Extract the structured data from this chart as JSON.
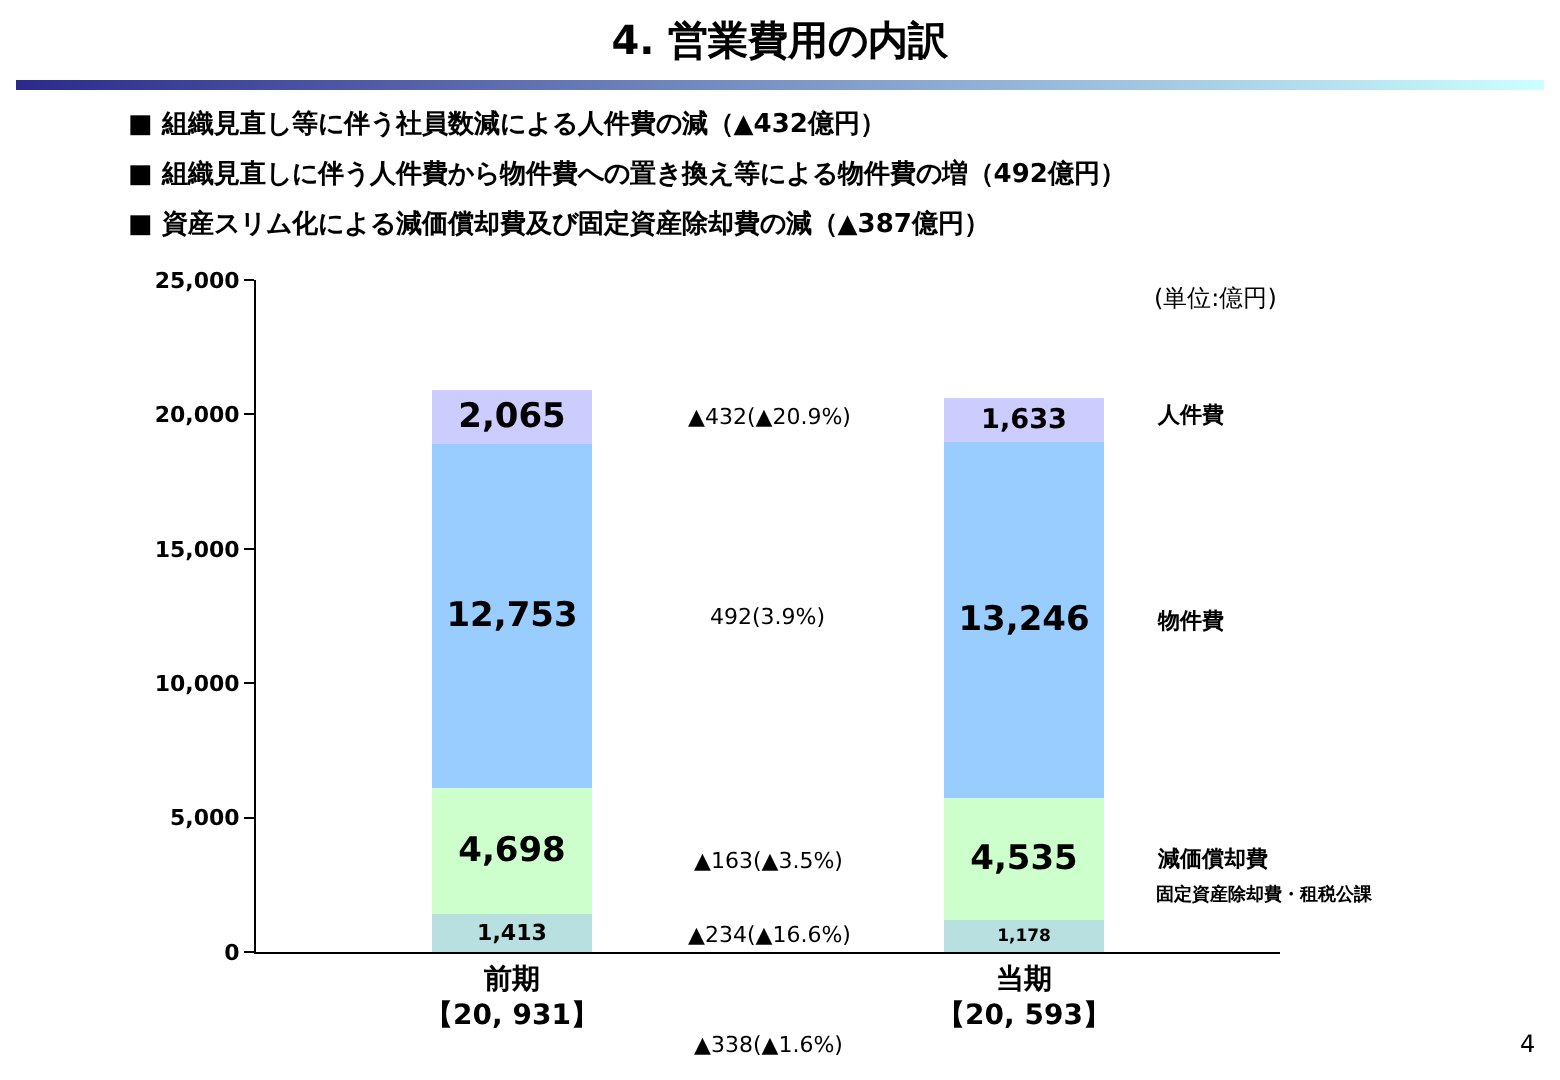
{
  "chart_data": {
    "type": "bar",
    "stacked": true,
    "title": "4. 営業費用の内訳",
    "subtitle": "■ 組織見直し等に伴う社員数減による人件費の減（▲432億円）\n■ 組織見直しに伴う人件費から物件費への置き換え等による物件費の増（492億円）\n■ 資産スリム化による減価償却費及び固定資産除却費の減（▲387億円）",
    "categories": [
      "前期【20, 931】",
      "当期【20, 593】"
    ],
    "series": [
      {
        "name": "固定資産除却費・租税公課",
        "color": "#b8e0e0",
        "values": [
          1413,
          1178
        ],
        "value_labels": [
          "1,413",
          "1,178"
        ]
      },
      {
        "name": "減価償却費",
        "color": "#ccffcc",
        "values": [
          4698,
          4535
        ],
        "value_labels": [
          "4,698",
          "4,535"
        ]
      },
      {
        "name": "物件費",
        "color": "#99ccff",
        "values": [
          12753,
          13246
        ],
        "value_labels": [
          "12,753",
          "13,246"
        ]
      },
      {
        "name": "人件費",
        "color": "#ccccff",
        "values": [
          2065,
          1633
        ],
        "value_labels": [
          "2,065",
          "1,633"
        ]
      }
    ],
    "ylim": [
      0,
      25000
    ],
    "yticks": [
      0,
      {
        "value": 5000,
        "label": "5,000"
      },
      {
        "value": 10000,
        "label": "10,000"
      },
      {
        "value": 15000,
        "label": "15,000"
      },
      {
        "value": 20000,
        "label": "20,000"
      },
      {
        "value": 25000,
        "label": "25,000"
      }
    ],
    "grid": false,
    "legend": false,
    "annotations": [
      "▲432(▲20.9%)",
      "492(3.9%)",
      "▲163(▲3.5%)",
      "▲234(▲16.6%)",
      "(単位:億円)",
      "▲338(▲1.6%)",
      "4"
    ]
  }
}
